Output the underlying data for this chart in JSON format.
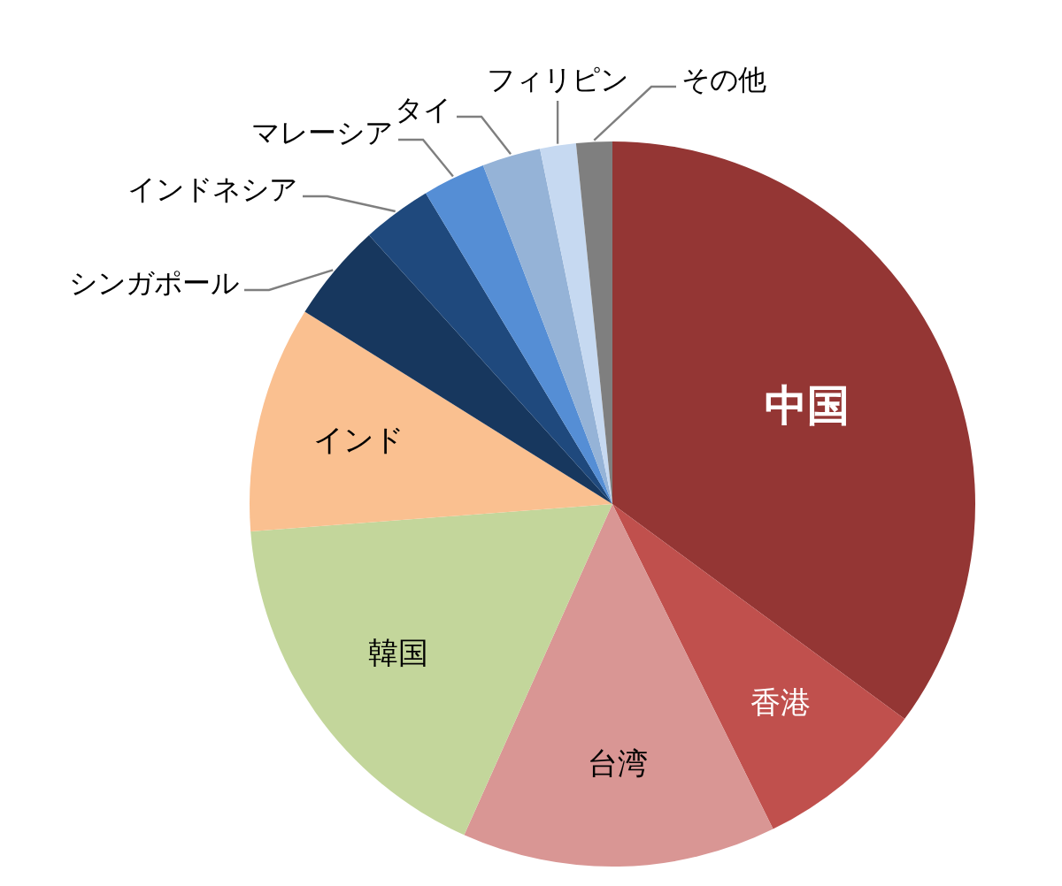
{
  "chart_data": {
    "type": "pie",
    "categories": [
      "中国",
      "香港",
      "台湾",
      "韓国",
      "インド",
      "シンガポール",
      "インドネシア",
      "マレーシア",
      "タイ",
      "フィリピン",
      "その他"
    ],
    "values": [
      35.1,
      7.6,
      14,
      17.1,
      10.1,
      4.4,
      3.1,
      2.8,
      2.6,
      1.6,
      1.6
    ],
    "colors": [
      "#943634",
      "#c0504d",
      "#d99694",
      "#c3d69b",
      "#fac090",
      "#17375e",
      "#1f497d",
      "#558ed5",
      "#95b3d7",
      "#c6d9f1",
      "#7f7f7f"
    ]
  }
}
